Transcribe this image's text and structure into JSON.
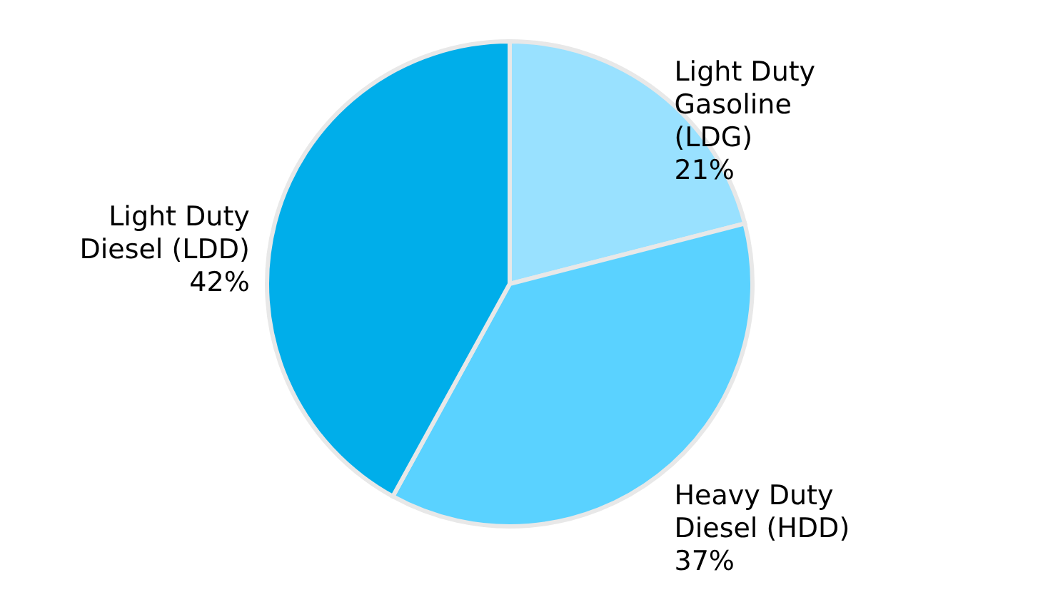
{
  "chart_data": {
    "type": "pie",
    "categories": [
      "Light Duty Gasoline (LDG)",
      "Heavy Duty Diesel (HDD)",
      "Light Duty Diesel (LDD)"
    ],
    "values": [
      21,
      37,
      42
    ],
    "colors": [
      "#99e1ff",
      "#5ad2ff",
      "#00aeea"
    ],
    "value_labels": [
      "21%",
      "37%",
      "42%"
    ]
  }
}
